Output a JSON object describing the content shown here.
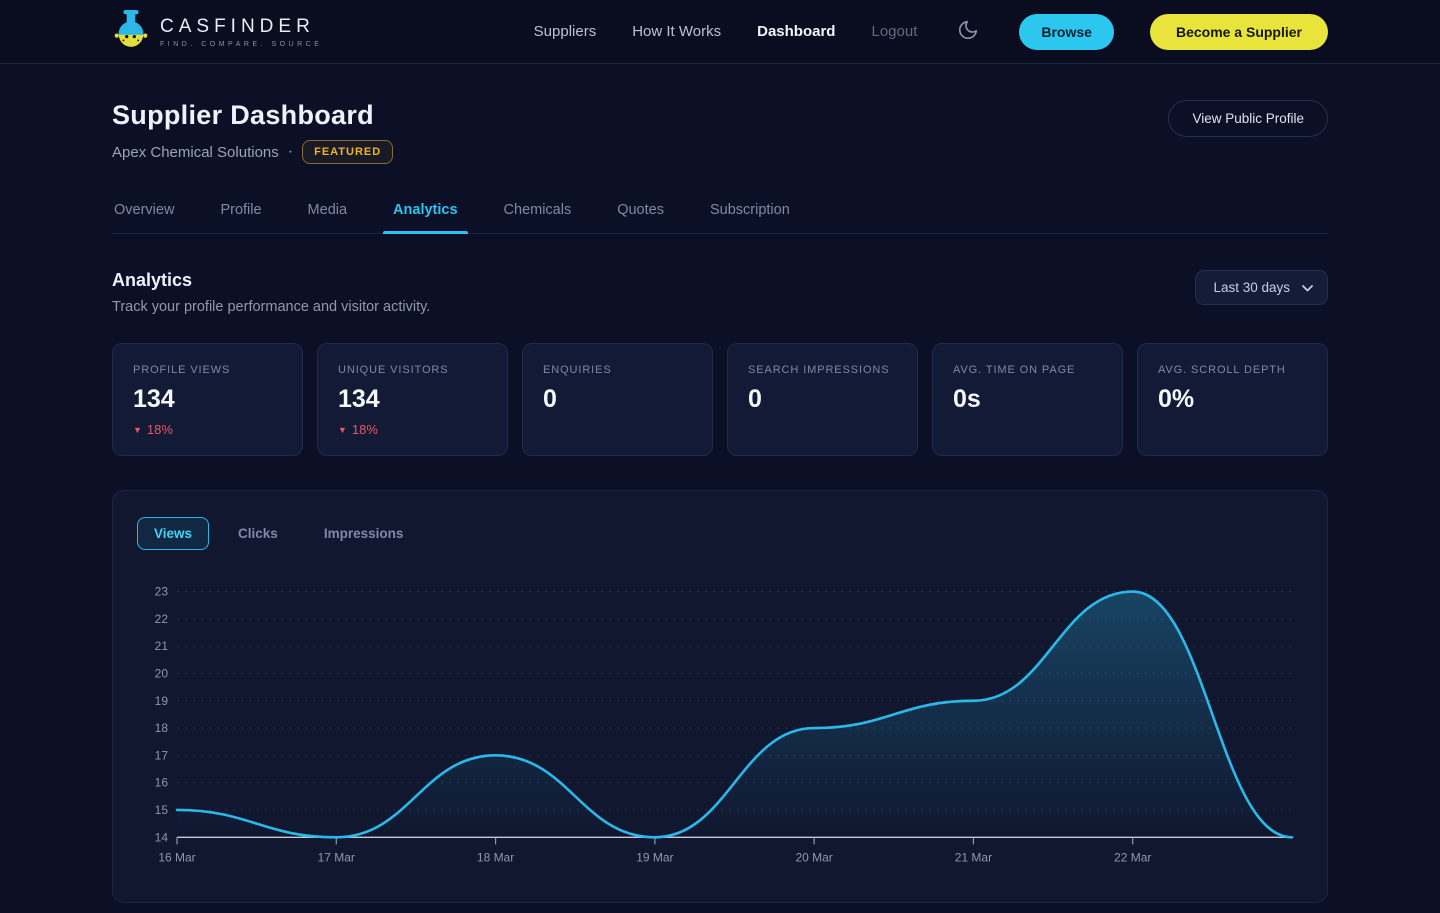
{
  "header": {
    "brand": {
      "name": "CASFINDER",
      "tagline": "FIND. COMPARE. SOURCE"
    },
    "nav": [
      {
        "label": "Suppliers"
      },
      {
        "label": "How It Works"
      },
      {
        "label": "Dashboard",
        "active": true
      },
      {
        "label": "Logout"
      }
    ],
    "theme_icon": "moon-icon",
    "browse_label": "Browse",
    "become_supplier_label": "Become a Supplier"
  },
  "page": {
    "title": "Supplier Dashboard",
    "company": "Apex Chemical Solutions",
    "separator": "·",
    "featured_badge": "FEATURED",
    "view_public_profile_label": "View Public Profile"
  },
  "tabs": [
    {
      "label": "Overview"
    },
    {
      "label": "Profile"
    },
    {
      "label": "Media"
    },
    {
      "label": "Analytics",
      "active": true
    },
    {
      "label": "Chemicals"
    },
    {
      "label": "Quotes"
    },
    {
      "label": "Subscription"
    }
  ],
  "analytics": {
    "heading": "Analytics",
    "subheading": "Track your profile performance and visitor activity.",
    "range_value": "Last 30 days"
  },
  "stats": [
    {
      "label": "PROFILE VIEWS",
      "value": "134",
      "delta_icon": "▼",
      "delta": "18%"
    },
    {
      "label": "UNIQUE VISITORS",
      "value": "134",
      "delta_icon": "▼",
      "delta": "18%"
    },
    {
      "label": "ENQUIRIES",
      "value": "0"
    },
    {
      "label": "SEARCH IMPRESSIONS",
      "value": "0"
    },
    {
      "label": "AVG. TIME ON PAGE",
      "value": "0s"
    },
    {
      "label": "AVG. SCROLL DEPTH",
      "value": "0%"
    }
  ],
  "chart_tabs": [
    {
      "label": "Views",
      "active": true
    },
    {
      "label": "Clicks"
    },
    {
      "label": "Impressions"
    }
  ],
  "chart_data": {
    "type": "area",
    "series_name": "Views",
    "x": [
      "16 Mar",
      "17 Mar",
      "18 Mar",
      "19 Mar",
      "20 Mar",
      "21 Mar",
      "22 Mar",
      ""
    ],
    "values": [
      15,
      14,
      17,
      14,
      18,
      19,
      23,
      14
    ],
    "ylim": [
      14,
      23
    ],
    "y_ticks": [
      14,
      15,
      16,
      17,
      18,
      19,
      20,
      21,
      22,
      23
    ],
    "grid": "dashed-horizontal",
    "legend": "none",
    "line_color": "#2bb8e8",
    "area_opacity_top": 0.28,
    "area_opacity_bottom": 0.0,
    "axis_color": "#c6ccd9",
    "tick_label_color": "#8e97ac",
    "grid_color": "#aab4d0"
  },
  "colors": {
    "accent_cyan": "#2bb8e8",
    "accent_yellow": "#e9e43c",
    "featured_gold": "#f2b32a",
    "negative_red": "#ee5468",
    "background": "#0b1026",
    "card_background": "#121a36"
  }
}
